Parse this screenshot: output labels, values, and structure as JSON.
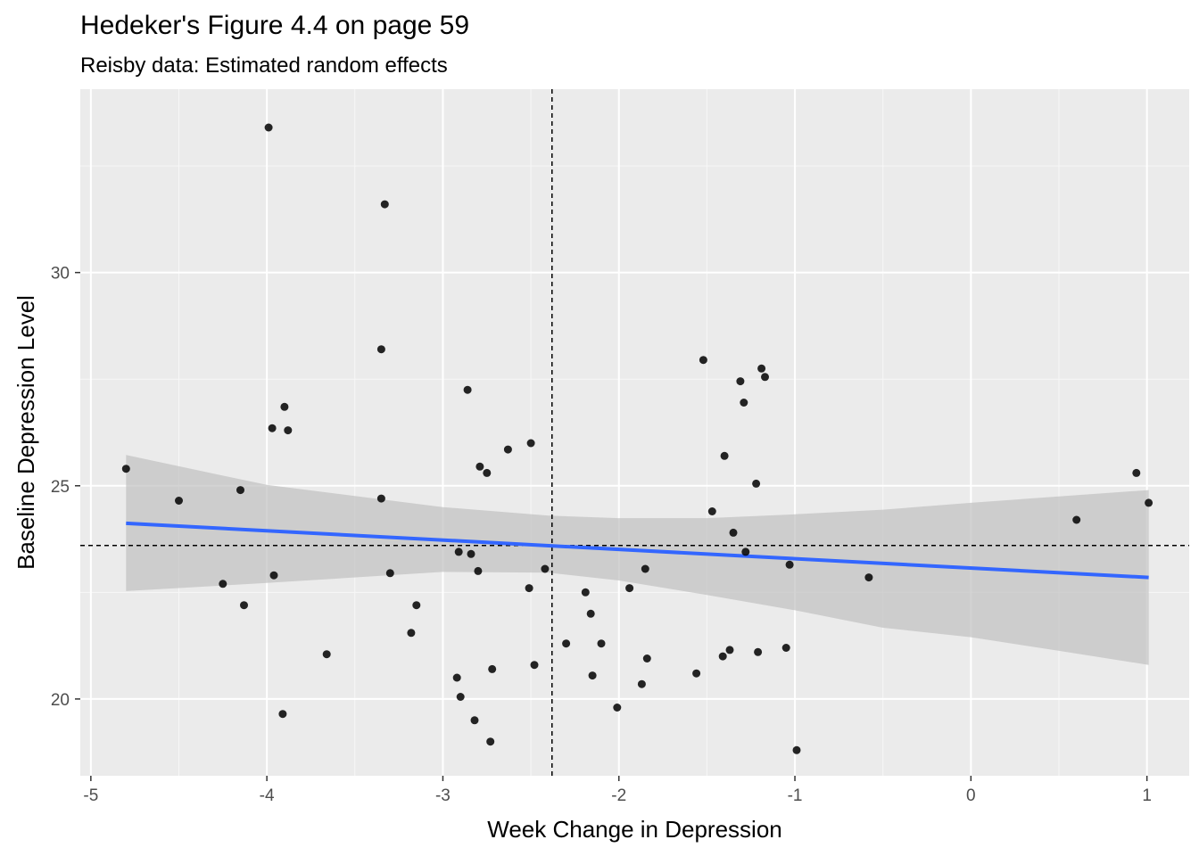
{
  "chart_data": {
    "type": "scatter",
    "title": "Hedeker's Figure 4.4 on page 59",
    "subtitle": "Reisby data: Estimated random effects",
    "xlabel": "Week Change in Depression",
    "ylabel": "Baseline Depression Level",
    "xlim": [
      -5.06,
      1.24
    ],
    "ylim": [
      18.2,
      34.3
    ],
    "x_ticks": [
      -5,
      -4,
      -3,
      -2,
      -1,
      0,
      1
    ],
    "x_tick_labels": [
      "-5",
      "-4",
      "-3",
      "-2",
      "-1",
      "0",
      "1"
    ],
    "y_ticks": [
      20,
      25,
      30
    ],
    "y_tick_labels": [
      "20",
      "25",
      "30"
    ],
    "grid": true,
    "mean_x": -2.38,
    "mean_y": 23.6,
    "points": [
      [
        -4.8,
        25.4
      ],
      [
        -4.5,
        24.65
      ],
      [
        -4.25,
        22.7
      ],
      [
        -4.15,
        24.9
      ],
      [
        -4.13,
        22.2
      ],
      [
        -3.99,
        33.4
      ],
      [
        -3.97,
        26.35
      ],
      [
        -3.96,
        22.9
      ],
      [
        -3.91,
        19.65
      ],
      [
        -3.9,
        26.85
      ],
      [
        -3.88,
        26.3
      ],
      [
        -3.66,
        21.05
      ],
      [
        -3.35,
        28.2
      ],
      [
        -3.35,
        24.7
      ],
      [
        -3.33,
        31.6
      ],
      [
        -3.3,
        22.95
      ],
      [
        -3.18,
        21.55
      ],
      [
        -3.15,
        22.2
      ],
      [
        -2.92,
        20.5
      ],
      [
        -2.91,
        23.45
      ],
      [
        -2.9,
        20.05
      ],
      [
        -2.86,
        27.25
      ],
      [
        -2.84,
        23.4
      ],
      [
        -2.82,
        19.5
      ],
      [
        -2.8,
        23.0
      ],
      [
        -2.79,
        25.45
      ],
      [
        -2.75,
        25.3
      ],
      [
        -2.73,
        19.0
      ],
      [
        -2.72,
        20.7
      ],
      [
        -2.63,
        25.85
      ],
      [
        -2.51,
        22.6
      ],
      [
        -2.5,
        26.0
      ],
      [
        -2.48,
        20.8
      ],
      [
        -2.42,
        23.05
      ],
      [
        -2.3,
        21.3
      ],
      [
        -2.19,
        22.5
      ],
      [
        -2.16,
        22.0
      ],
      [
        -2.15,
        20.55
      ],
      [
        -2.1,
        21.3
      ],
      [
        -2.01,
        19.8
      ],
      [
        -1.94,
        22.6
      ],
      [
        -1.87,
        20.35
      ],
      [
        -1.85,
        23.05
      ],
      [
        -1.84,
        20.95
      ],
      [
        -1.56,
        20.6
      ],
      [
        -1.52,
        27.95
      ],
      [
        -1.47,
        24.4
      ],
      [
        -1.41,
        21.0
      ],
      [
        -1.4,
        25.7
      ],
      [
        -1.37,
        21.15
      ],
      [
        -1.35,
        23.9
      ],
      [
        -1.31,
        27.45
      ],
      [
        -1.29,
        26.95
      ],
      [
        -1.28,
        23.45
      ],
      [
        -1.22,
        25.05
      ],
      [
        -1.21,
        21.1
      ],
      [
        -1.19,
        27.75
      ],
      [
        -1.17,
        27.55
      ],
      [
        -1.05,
        21.2
      ],
      [
        -1.03,
        23.15
      ],
      [
        -0.99,
        18.8
      ],
      [
        -0.58,
        22.85
      ],
      [
        0.6,
        24.2
      ],
      [
        0.94,
        25.3
      ],
      [
        1.01,
        24.6
      ]
    ],
    "fit_line": {
      "x": [
        -4.8,
        1.01
      ],
      "y": [
        24.12,
        22.85
      ]
    },
    "confidence_band": {
      "x": [
        -4.8,
        -4.0,
        -3.0,
        -2.4,
        -2.0,
        -1.5,
        -1.0,
        -0.5,
        0.0,
        0.5,
        1.01
      ],
      "upper": [
        25.72,
        25.02,
        24.5,
        24.3,
        24.24,
        24.24,
        24.33,
        24.44,
        24.6,
        24.75,
        24.9
      ],
      "lower": [
        22.53,
        22.72,
        22.98,
        22.96,
        22.78,
        22.44,
        22.08,
        21.67,
        21.45,
        21.13,
        20.8
      ]
    },
    "colors": {
      "panel": "#ebebeb",
      "grid_major": "#ffffff",
      "points": "#000000",
      "fit_line": "#3366ff",
      "band": "#c0c0c0"
    }
  }
}
